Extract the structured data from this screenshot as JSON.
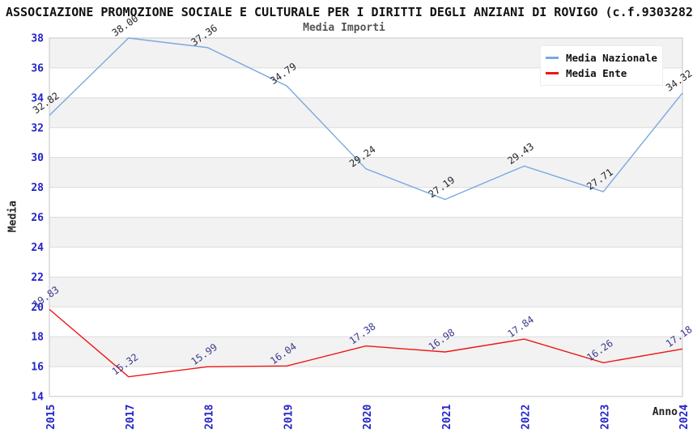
{
  "header": {
    "title": "ASSOCIAZIONE PROMOZIONE SOCIALE E CULTURALE PER I DIRITTI DEGLI ANZIANI DI ROVIGO (c.f.9303282",
    "subtitle": "Media Importi"
  },
  "axes": {
    "y_title": "Media",
    "x_title": "Anno",
    "y_ticks": [
      14,
      16,
      18,
      20,
      22,
      24,
      26,
      28,
      30,
      32,
      34,
      36,
      38
    ]
  },
  "legend": {
    "items": [
      {
        "label": "Media Nazionale",
        "color": "#79A8DF"
      },
      {
        "label": "Media Ente",
        "color": "#EE1515"
      }
    ]
  },
  "chart_data": {
    "type": "line",
    "title": "Media Importi",
    "categories": [
      "2015",
      "2017",
      "2018",
      "2019",
      "2020",
      "2021",
      "2022",
      "2023",
      "2024"
    ],
    "series": [
      {
        "name": "Media Nazionale",
        "color": "#79A8DF",
        "label_color": "#26262E",
        "values": [
          32.82,
          38.0,
          37.36,
          34.79,
          29.24,
          27.19,
          29.43,
          27.71,
          34.32
        ]
      },
      {
        "name": "Media Ente",
        "color": "#EE1515",
        "label_color": "#3B3B8F",
        "values": [
          19.83,
          15.32,
          15.99,
          16.04,
          17.38,
          16.98,
          17.84,
          16.26,
          17.18
        ]
      }
    ],
    "xlabel": "Anno",
    "ylabel": "Media",
    "ylim": [
      14,
      38
    ],
    "ytick_step": 2,
    "grid": true,
    "alternating_bands": true,
    "legend_position": "top-right"
  },
  "colors": {
    "axis_label": "#2424C8",
    "band": "#F2F2F2",
    "gridline": "#DCDCDC",
    "frame": "#CFCFCF",
    "title_text": "#111111",
    "subtitle_text": "#555555"
  }
}
